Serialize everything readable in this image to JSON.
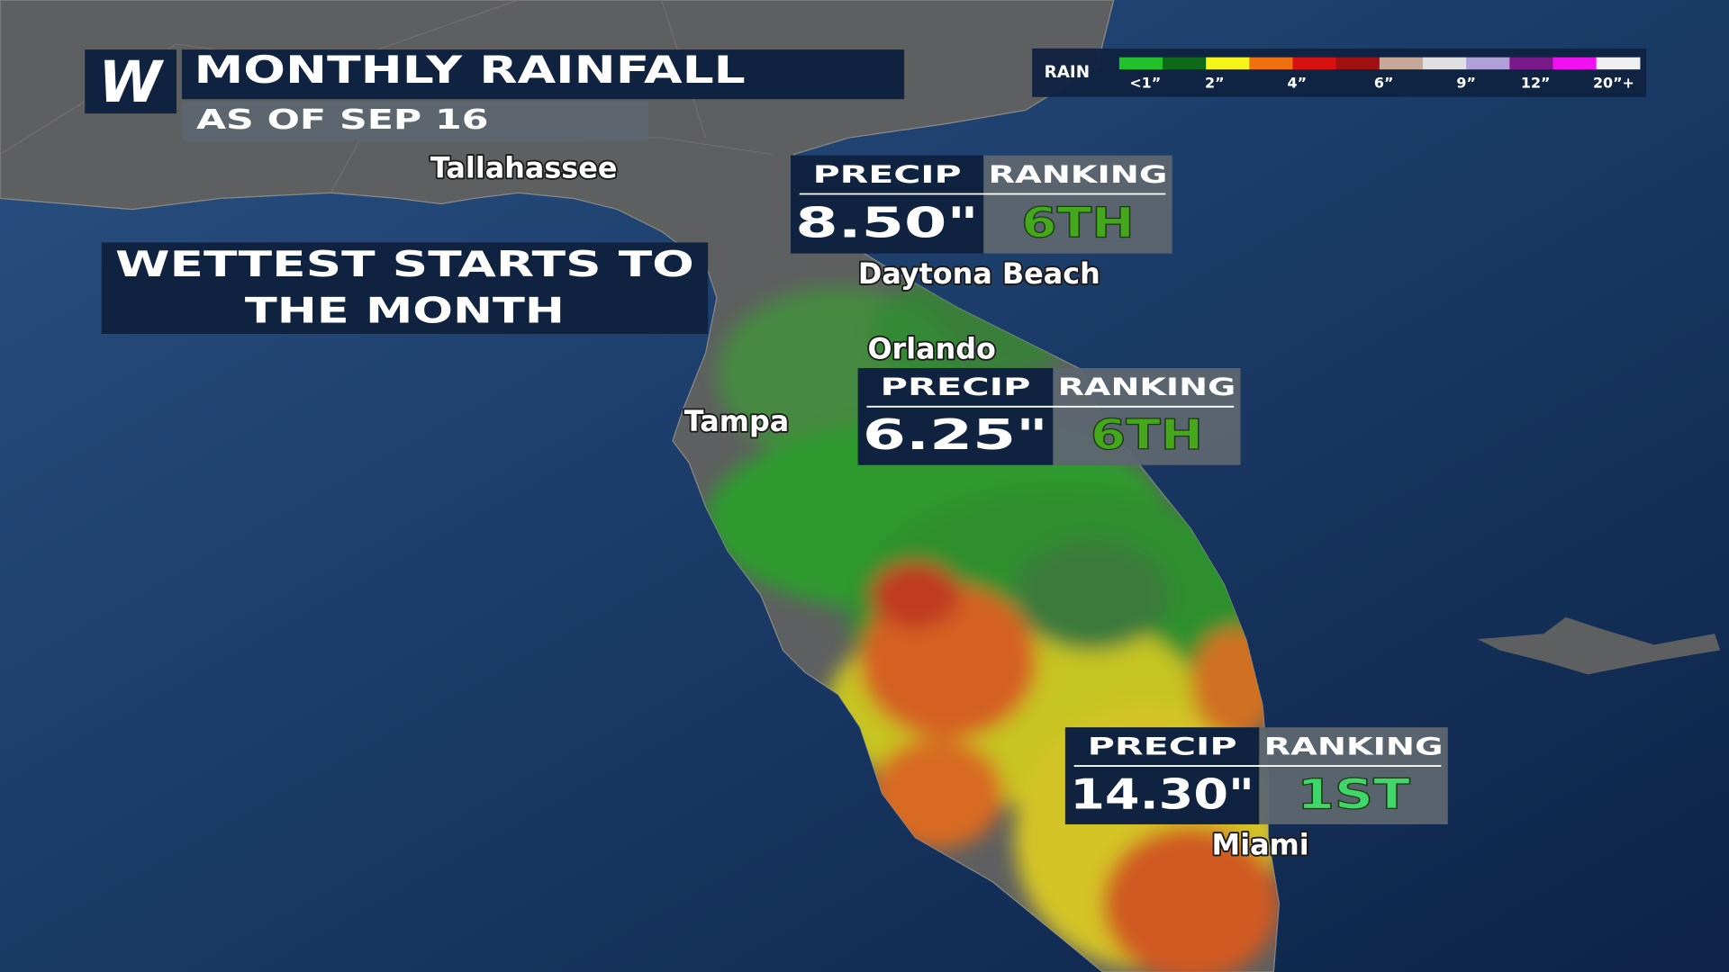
{
  "header": {
    "logo": "W",
    "title": "MONTHLY RAINFALL",
    "subtitle": "AS OF SEP 16"
  },
  "legend": {
    "label": "RAIN",
    "colors": [
      "#22c02a",
      "#0c6a18",
      "#f5f51a",
      "#f07010",
      "#d81010",
      "#a01010",
      "#c8a898",
      "#e0e0e0",
      "#b0a0d8",
      "#7a1a8a",
      "#f010f0",
      "#f0f0f0"
    ],
    "ticks": [
      "<1”",
      "2”",
      "4”",
      "6”",
      "9”",
      "12”",
      "20”+"
    ]
  },
  "callout": {
    "lines": [
      "WETTEST STARTS TO",
      "THE MONTH"
    ]
  },
  "cities": [
    "Tallahassee",
    "Daytona Beach",
    "Orlando",
    "Tampa",
    "Miami"
  ],
  "stat_boxes": [
    {
      "precip_label": "PRECIP",
      "ranking_label": "RANKING",
      "precip": "8.50\"",
      "ranking": "6TH",
      "rank_color": "#45a81c"
    },
    {
      "precip_label": "PRECIP",
      "ranking_label": "RANKING",
      "precip": "6.25\"",
      "ranking": "6TH",
      "rank_color": "#45a81c"
    },
    {
      "precip_label": "PRECIP",
      "ranking_label": "RANKING",
      "precip": "14.30\"",
      "ranking": "1ST",
      "rank_color": "#3fd66a"
    }
  ]
}
